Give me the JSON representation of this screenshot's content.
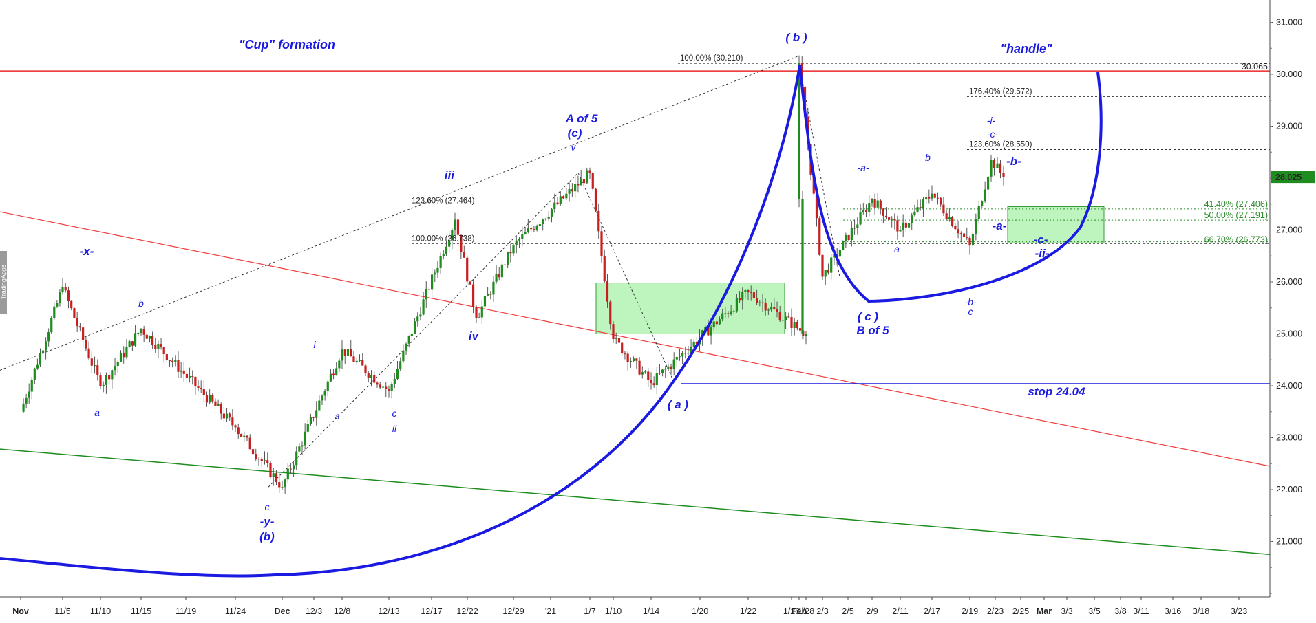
{
  "watermark_text": "TradingApps",
  "colors": {
    "up_candle": "#1e8c1e",
    "down_candle": "#c81e1e",
    "wick": "#555555",
    "wave_label": "#1a1ae0",
    "cup_curve": "#1a1ae0",
    "resistance_line": "#e60000",
    "red_trend_line": "#f03c3c",
    "green_trend_line": "#1e8c1e",
    "fib_green": "#2c8a2c",
    "price_tag": "#1e8c1e"
  },
  "chart_data": {
    "type": "candlestick",
    "title": "",
    "annotations_text": {
      "cup": "\"Cup\" formation",
      "handle": "\"handle\"",
      "stop": "stop 24.04"
    },
    "y_axis": {
      "min": 19.7,
      "max": 31.3,
      "ticks": [
        "31.000",
        "30.000",
        "29.000",
        "28.000",
        "27.000",
        "26.000",
        "25.000",
        "24.000",
        "23.000",
        "22.000",
        "21.000"
      ],
      "grid": false
    },
    "x_axis": {
      "labels": [
        "Nov",
        "11/5",
        "11/10",
        "11/15",
        "11/19",
        "11/24",
        "Dec",
        "12/3",
        "12/8",
        "12/13",
        "12/17",
        "12/22",
        "12/29",
        "'21",
        "1/7",
        "1/10",
        "1/14",
        "1/20",
        "1/22",
        "1/26",
        "1/28",
        "Feb",
        "2/3",
        "2/5",
        "2/9",
        "2/11",
        "2/17",
        "2/19",
        "2/23",
        "2/25",
        "Mar",
        "3/3",
        "3/5",
        "3/8",
        "3/11",
        "3/16",
        "3/18",
        "3/23"
      ]
    },
    "last_price": "28.025",
    "resistance_level": "30.065",
    "stop_level": 24.04,
    "fib_levels": [
      {
        "label": "100.00% (30.210)",
        "value": 30.21
      },
      {
        "label": "176.40% (29.572)",
        "value": 29.572
      },
      {
        "label": "123.60% (28.550)",
        "value": 28.55
      },
      {
        "label": "123.60% (27.464)",
        "value": 27.464
      },
      {
        "label": "100.00% (26.738)",
        "value": 26.738
      },
      {
        "label": "41.40% (27.406)",
        "value": 27.406
      },
      {
        "label": "50.00% (27.191)",
        "value": 27.191
      },
      {
        "label": "66.70% (26.773)",
        "value": 26.773
      }
    ],
    "wave_labels": [
      "-x-",
      "a",
      "b",
      "i",
      "a",
      "c",
      "ii",
      "iii",
      "iv",
      "c",
      "-y-",
      "(b)",
      "A of 5",
      "(c)",
      "v",
      "( a )",
      "( b )",
      "( c )",
      "B of 5",
      "-a-",
      "a",
      "b",
      "c",
      "-b-",
      "-i-",
      "-c-",
      "-b-",
      "-a-",
      "-c-",
      "-ii-"
    ],
    "key_points": [
      {
        "date": "Nov",
        "price": 23.5
      },
      {
        "date": "11/5",
        "price": 25.9
      },
      {
        "date": "11/10",
        "price": 24.0
      },
      {
        "date": "11/15",
        "price": 25.1
      },
      {
        "date": "11/24",
        "price": 23.2
      },
      {
        "date": "Dec",
        "price": 22.05
      },
      {
        "date": "12/8",
        "price": 24.7
      },
      {
        "date": "12/13",
        "price": 23.9
      },
      {
        "date": "12/22",
        "price": 27.2
      },
      {
        "date": "12/22",
        "price": 25.3
      },
      {
        "date": "12/29",
        "price": 26.7
      },
      {
        "date": "1/7",
        "price": 28.1
      },
      {
        "date": "1/10",
        "price": 24.9
      },
      {
        "date": "1/14",
        "price": 24.05
      },
      {
        "date": "1/22",
        "price": 25.8
      },
      {
        "date": "1/28",
        "price": 25.0
      },
      {
        "date": "Feb",
        "price": 30.21
      },
      {
        "date": "2/3",
        "price": 26.1
      },
      {
        "date": "2/9",
        "price": 27.6
      },
      {
        "date": "2/11",
        "price": 27.0
      },
      {
        "date": "2/17",
        "price": 27.7
      },
      {
        "date": "2/19",
        "price": 26.7
      },
      {
        "date": "2/23",
        "price": 28.35
      },
      {
        "date": "2/23",
        "price": 28.025
      }
    ]
  }
}
